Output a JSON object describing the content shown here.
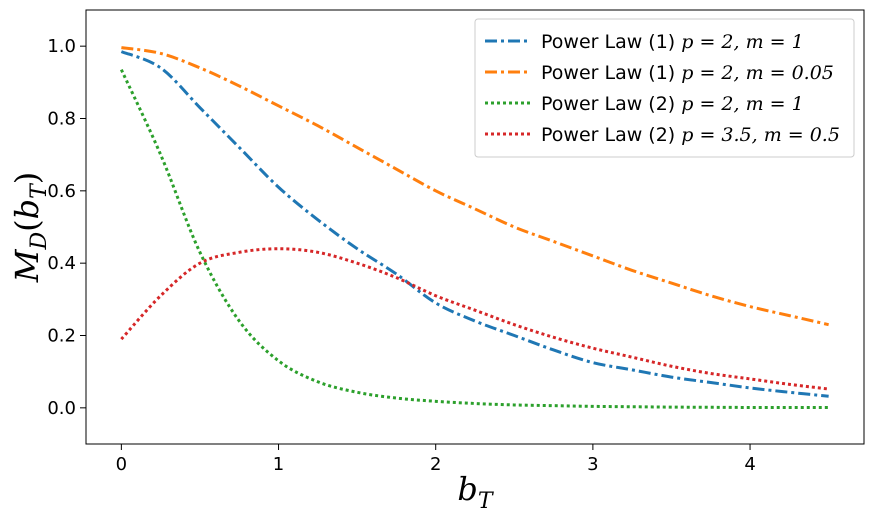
{
  "chart_data": {
    "type": "line",
    "title": "",
    "xlabel": "b",
    "xlabel_sub": "T",
    "ylabel": "M",
    "ylabel_sub": "D",
    "ylabel_arg": "b",
    "ylabel_arg_sub": "T",
    "xlim": [
      -0.225,
      4.725
    ],
    "ylim": [
      -0.1,
      1.1
    ],
    "xticks": [
      "0",
      "1",
      "2",
      "3",
      "4"
    ],
    "xtick_values": [
      0,
      1,
      2,
      3,
      4
    ],
    "yticks": [
      "0.0",
      "0.2",
      "0.4",
      "0.6",
      "0.8",
      "1.0"
    ],
    "ytick_values": [
      0.0,
      0.2,
      0.4,
      0.6,
      0.8,
      1.0
    ],
    "grid": false,
    "legend_position": "top-right",
    "x": [
      0,
      0.25,
      0.5,
      0.75,
      1.0,
      1.25,
      1.5,
      1.75,
      2.0,
      2.25,
      2.5,
      2.75,
      3.0,
      3.25,
      3.5,
      3.75,
      4.0,
      4.25,
      4.5
    ],
    "series": [
      {
        "name": "Power Law (1) p = 2, m = 1",
        "legend_prefix": "Power Law (1) ",
        "legend_math": "p = 2, m = 1",
        "color": "#1f77b4",
        "style": "dashdot",
        "values": [
          0.985,
          0.94,
          0.83,
          0.72,
          0.61,
          0.52,
          0.44,
          0.37,
          0.29,
          0.24,
          0.2,
          0.16,
          0.125,
          0.105,
          0.085,
          0.07,
          0.055,
          0.043,
          0.032
        ]
      },
      {
        "name": "Power Law (1) p = 2, m = 0.05",
        "legend_prefix": "Power Law (1) ",
        "legend_math": "p = 2, m = 0.05",
        "color": "#ff7f0e",
        "style": "dashdot",
        "values": [
          0.996,
          0.98,
          0.94,
          0.89,
          0.835,
          0.78,
          0.72,
          0.66,
          0.6,
          0.55,
          0.5,
          0.46,
          0.42,
          0.38,
          0.345,
          0.31,
          0.28,
          0.255,
          0.23
        ]
      },
      {
        "name": "Power Law (2) p = 2, m = 1",
        "legend_prefix": "Power Law (2) ",
        "legend_math": "p = 2, m = 1",
        "color": "#2ca02c",
        "style": "dotted",
        "values": [
          0.935,
          0.7,
          0.43,
          0.24,
          0.13,
          0.072,
          0.043,
          0.027,
          0.018,
          0.012,
          0.008,
          0.006,
          0.004,
          0.003,
          0.002,
          0.0015,
          0.001,
          0.001,
          0.001
        ]
      },
      {
        "name": "Power Law (2) p = 3.5, m = 0.5",
        "legend_prefix": "Power Law (2) ",
        "legend_math": "p = 3.5, m = 0.5",
        "color": "#d62728",
        "style": "dotted",
        "values": [
          0.19,
          0.31,
          0.4,
          0.43,
          0.44,
          0.43,
          0.4,
          0.36,
          0.31,
          0.27,
          0.23,
          0.195,
          0.165,
          0.14,
          0.115,
          0.095,
          0.08,
          0.065,
          0.052
        ]
      }
    ]
  }
}
